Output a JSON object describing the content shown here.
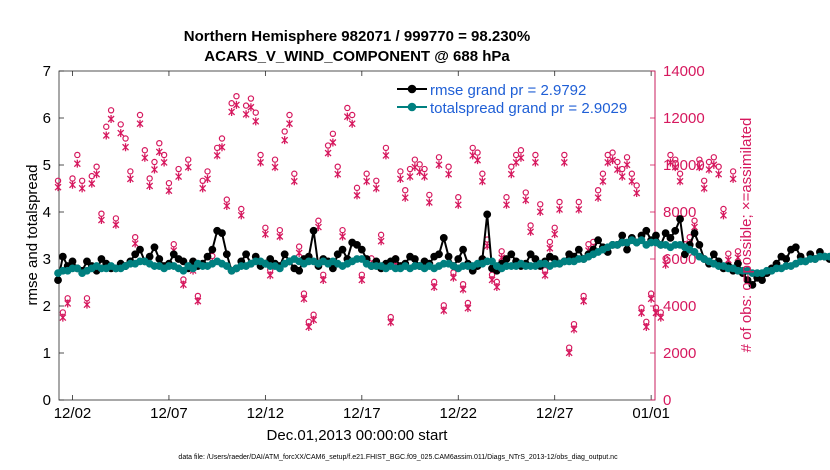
{
  "chart_data": {
    "type": "line",
    "title": "Northern Hemisphere 982071 / 999770 = 98.230%",
    "subtitle": "ACARS_V_WIND_COMPONENT @ 688 hPa",
    "xlabel": "Dec.01,2013 00:00:00 start",
    "ylabel_left": "rmse and totalspread",
    "ylabel_right": "# of obs: o=possible; ×=assimilated",
    "ylim_left": [
      0,
      7
    ],
    "ylim_right": [
      0,
      14000
    ],
    "xlim_days": [
      0.3,
      31.2
    ],
    "x_tick_labels": [
      "12/02",
      "12/07",
      "12/12",
      "12/17",
      "12/22",
      "12/27",
      "01/01"
    ],
    "x_tick_days": [
      1,
      6,
      11,
      16,
      21,
      26,
      31
    ],
    "y_tick_labels_left": [
      "0",
      "1",
      "2",
      "3",
      "4",
      "5",
      "6",
      "7"
    ],
    "y_tick_labels_right": [
      "0",
      "2000",
      "4000",
      "6000",
      "8000",
      "10000",
      "12000",
      "14000"
    ],
    "legend": [
      {
        "label": "rmse grand pr = 2.9792",
        "color": "#000000"
      },
      {
        "label": "totalspread grand pr = 2.9029",
        "color": "#008080"
      }
    ],
    "footnote": "data file: /Users/raeder/DAI/ATM_forcXX/CAM6_setup/f.e21.FHIST_BGC.f09_025.CAM6assim.011/Diags_NTrS_2013-12/obs_diag_output.nc",
    "series": [
      {
        "name": "rmse",
        "color": "#000000",
        "step_days": 0.25,
        "start_day": 0.25,
        "values": [
          2.55,
          3.05,
          2.85,
          2.95,
          2.8,
          2.75,
          2.95,
          2.85,
          2.75,
          3.0,
          2.9,
          2.8,
          2.8,
          2.9,
          2.85,
          2.95,
          3.1,
          3.2,
          2.95,
          3.05,
          3.25,
          3.0,
          2.85,
          2.9,
          3.1,
          3.0,
          2.95,
          2.8,
          2.95,
          2.85,
          2.9,
          3.05,
          3.2,
          3.6,
          3.55,
          3.1,
          2.75,
          2.8,
          2.95,
          3.1,
          2.9,
          3.05,
          2.85,
          2.9,
          3.0,
          2.9,
          2.85,
          3.1,
          2.95,
          2.8,
          2.75,
          3.0,
          3.05,
          3.6,
          2.85,
          3.0,
          2.95,
          2.8,
          3.1,
          3.2,
          3.0,
          3.35,
          3.3,
          3.2,
          3.0,
          2.85,
          2.95,
          2.8,
          2.9,
          2.95,
          3.0,
          2.85,
          2.9,
          3.05,
          3.0,
          2.85,
          2.95,
          2.9,
          3.05,
          3.1,
          3.45,
          3.05,
          2.85,
          3.0,
          3.2,
          2.9,
          2.75,
          2.85,
          3.0,
          3.95,
          2.8,
          2.75,
          2.9,
          3.0,
          3.1,
          2.95,
          2.85,
          2.9,
          3.1,
          3.0,
          2.85,
          2.95,
          3.05,
          3.0,
          2.9,
          2.95,
          3.1,
          3.05,
          3.2,
          3.0,
          3.1,
          3.2,
          3.4,
          3.25,
          3.15,
          3.3,
          3.3,
          3.5,
          3.2,
          3.45,
          3.35,
          3.5,
          3.6,
          3.4,
          3.5,
          3.3,
          3.55,
          3.45,
          3.6,
          3.85,
          3.1,
          3.3,
          3.55,
          3.3,
          3.0,
          2.9,
          3.1,
          2.95,
          2.8,
          2.85,
          2.75,
          2.9,
          2.7,
          2.55,
          2.45,
          2.6,
          2.55,
          2.7,
          2.8,
          2.9,
          3.05,
          3.0,
          3.2,
          3.25,
          3.05,
          2.95,
          3.1,
          3.0,
          3.15,
          3.05,
          3.0,
          3.1
        ]
      },
      {
        "name": "totalspread",
        "color": "#008080",
        "step_days": 0.25,
        "start_day": 0.25,
        "values": [
          2.7,
          2.75,
          2.75,
          2.8,
          2.8,
          2.7,
          2.75,
          2.8,
          2.85,
          2.8,
          2.8,
          2.85,
          2.8,
          2.8,
          2.85,
          2.9,
          2.9,
          2.95,
          2.95,
          2.9,
          2.85,
          2.85,
          2.8,
          2.85,
          2.85,
          2.8,
          2.75,
          2.85,
          2.8,
          2.9,
          2.85,
          2.85,
          2.9,
          2.95,
          2.9,
          2.85,
          2.75,
          2.8,
          2.85,
          2.85,
          2.9,
          2.95,
          2.95,
          2.9,
          2.85,
          2.85,
          2.8,
          2.9,
          2.95,
          3.0,
          2.95,
          2.9,
          2.95,
          2.95,
          2.9,
          2.95,
          2.9,
          2.95,
          2.9,
          2.85,
          2.9,
          2.95,
          3.0,
          3.0,
          2.9,
          2.85,
          2.85,
          2.85,
          2.8,
          2.85,
          2.8,
          2.8,
          2.85,
          2.8,
          2.85,
          2.85,
          2.8,
          2.85,
          2.8,
          2.85,
          2.9,
          2.9,
          2.85,
          2.8,
          2.85,
          2.85,
          2.85,
          2.9,
          2.9,
          2.95,
          2.95,
          2.85,
          2.8,
          2.85,
          2.85,
          2.85,
          2.9,
          2.85,
          2.85,
          2.85,
          2.9,
          2.9,
          2.85,
          2.9,
          2.9,
          2.95,
          2.95,
          2.95,
          3.0,
          3.0,
          3.05,
          3.1,
          3.15,
          3.2,
          3.25,
          3.3,
          3.3,
          3.35,
          3.35,
          3.4,
          3.35,
          3.4,
          3.3,
          3.35,
          3.35,
          3.3,
          3.3,
          3.25,
          3.3,
          3.3,
          3.25,
          3.2,
          3.15,
          3.05,
          3.0,
          2.95,
          2.9,
          2.85,
          2.85,
          2.8,
          2.8,
          2.75,
          2.75,
          2.75,
          2.7,
          2.7,
          2.7,
          2.75,
          2.75,
          2.8,
          2.8,
          2.85,
          2.85,
          2.9,
          2.95,
          2.95,
          3.0,
          3.0,
          3.05,
          3.05,
          3.05,
          3.1
        ]
      },
      {
        "name": "possible",
        "marker": "o",
        "color": "#d6185e",
        "step_days": 0.25,
        "start_day": 0.25,
        "values": [
          9200,
          3600,
          4200,
          9300,
          10300,
          9200,
          4200,
          9400,
          9800,
          7800,
          11500,
          12200,
          7600,
          11600,
          11000,
          9600,
          6800,
          12000,
          10500,
          9300,
          10000,
          10800,
          10300,
          9100,
          6500,
          9700,
          5000,
          10100,
          5600,
          4300,
          9200,
          9600,
          6000,
          10600,
          11000,
          8400,
          12500,
          12800,
          8000,
          12400,
          12700,
          12100,
          10300,
          7200,
          5400,
          10100,
          7100,
          11300,
          12000,
          9500,
          6400,
          4400,
          3200,
          3500,
          7500,
          5200,
          10700,
          11200,
          9800,
          7100,
          12300,
          12000,
          8900,
          5200,
          9500,
          5900,
          9200,
          6900,
          10600,
          3400,
          5900,
          9600,
          8800,
          9700,
          10100,
          9900,
          9700,
          8600,
          4900,
          10200,
          3900,
          9800,
          5300,
          8500,
          4800,
          4000,
          10600,
          10400,
          9500,
          6700,
          5200,
          4900,
          6200,
          8500,
          9800,
          10300,
          10500,
          8700,
          7300,
          10300,
          8200,
          5400,
          6600,
          7200,
          8300,
          10300,
          2100,
          3100,
          8300,
          4300,
          6500,
          6600,
          8800,
          9500,
          10300,
          10400,
          10000,
          9700,
          10200,
          9500,
          9000,
          3800,
          3200,
          4400,
          3800,
          3600,
          5900,
          10300,
          10100,
          9500,
          6500,
          6800,
          7500,
          10100,
          9200,
          10000,
          10200,
          9800,
          8000,
          6100,
          9600,
          6200
        ]
      },
      {
        "name": "assimilated",
        "marker": "x",
        "color": "#d6185e",
        "step_days": 0.25,
        "start_day": 0.25,
        "values": [
          9100,
          3550,
          4150,
          9200,
          10100,
          9050,
          4100,
          9250,
          9650,
          7700,
          11300,
          12000,
          7500,
          11400,
          10800,
          9450,
          6700,
          11800,
          10350,
          9150,
          9850,
          10600,
          10150,
          8950,
          6400,
          9550,
          4950,
          9950,
          5550,
          4250,
          9050,
          9450,
          5900,
          10450,
          10800,
          8300,
          12300,
          12600,
          7900,
          12200,
          12500,
          11900,
          10150,
          7100,
          5350,
          9950,
          7000,
          11100,
          11800,
          9350,
          6300,
          4350,
          3150,
          3450,
          7400,
          5150,
          10550,
          11000,
          9650,
          7000,
          12100,
          11800,
          8750,
          5150,
          9350,
          5800,
          9050,
          6800,
          10450,
          3350,
          5800,
          9450,
          8650,
          9550,
          9950,
          9750,
          9550,
          8450,
          4850,
          10050,
          3850,
          9650,
          5250,
          8350,
          4750,
          3950,
          10450,
          10250,
          9350,
          6600,
          5150,
          4850,
          6100,
          8350,
          9650,
          10150,
          10350,
          8550,
          7200,
          10150,
          8050,
          5350,
          6500,
          7100,
          8150,
          10150,
          2050,
          3050,
          8150,
          4250,
          6400,
          6500,
          8650,
          9350,
          10150,
          10250,
          9850,
          9550,
          10050,
          9350,
          8850,
          3750,
          3150,
          4350,
          3750,
          3550,
          5800,
          10150,
          9950,
          9350,
          6400,
          6700,
          7400,
          9950,
          9050,
          9850,
          10050,
          9650,
          7900,
          6000,
          9450,
          6100
        ]
      }
    ]
  }
}
